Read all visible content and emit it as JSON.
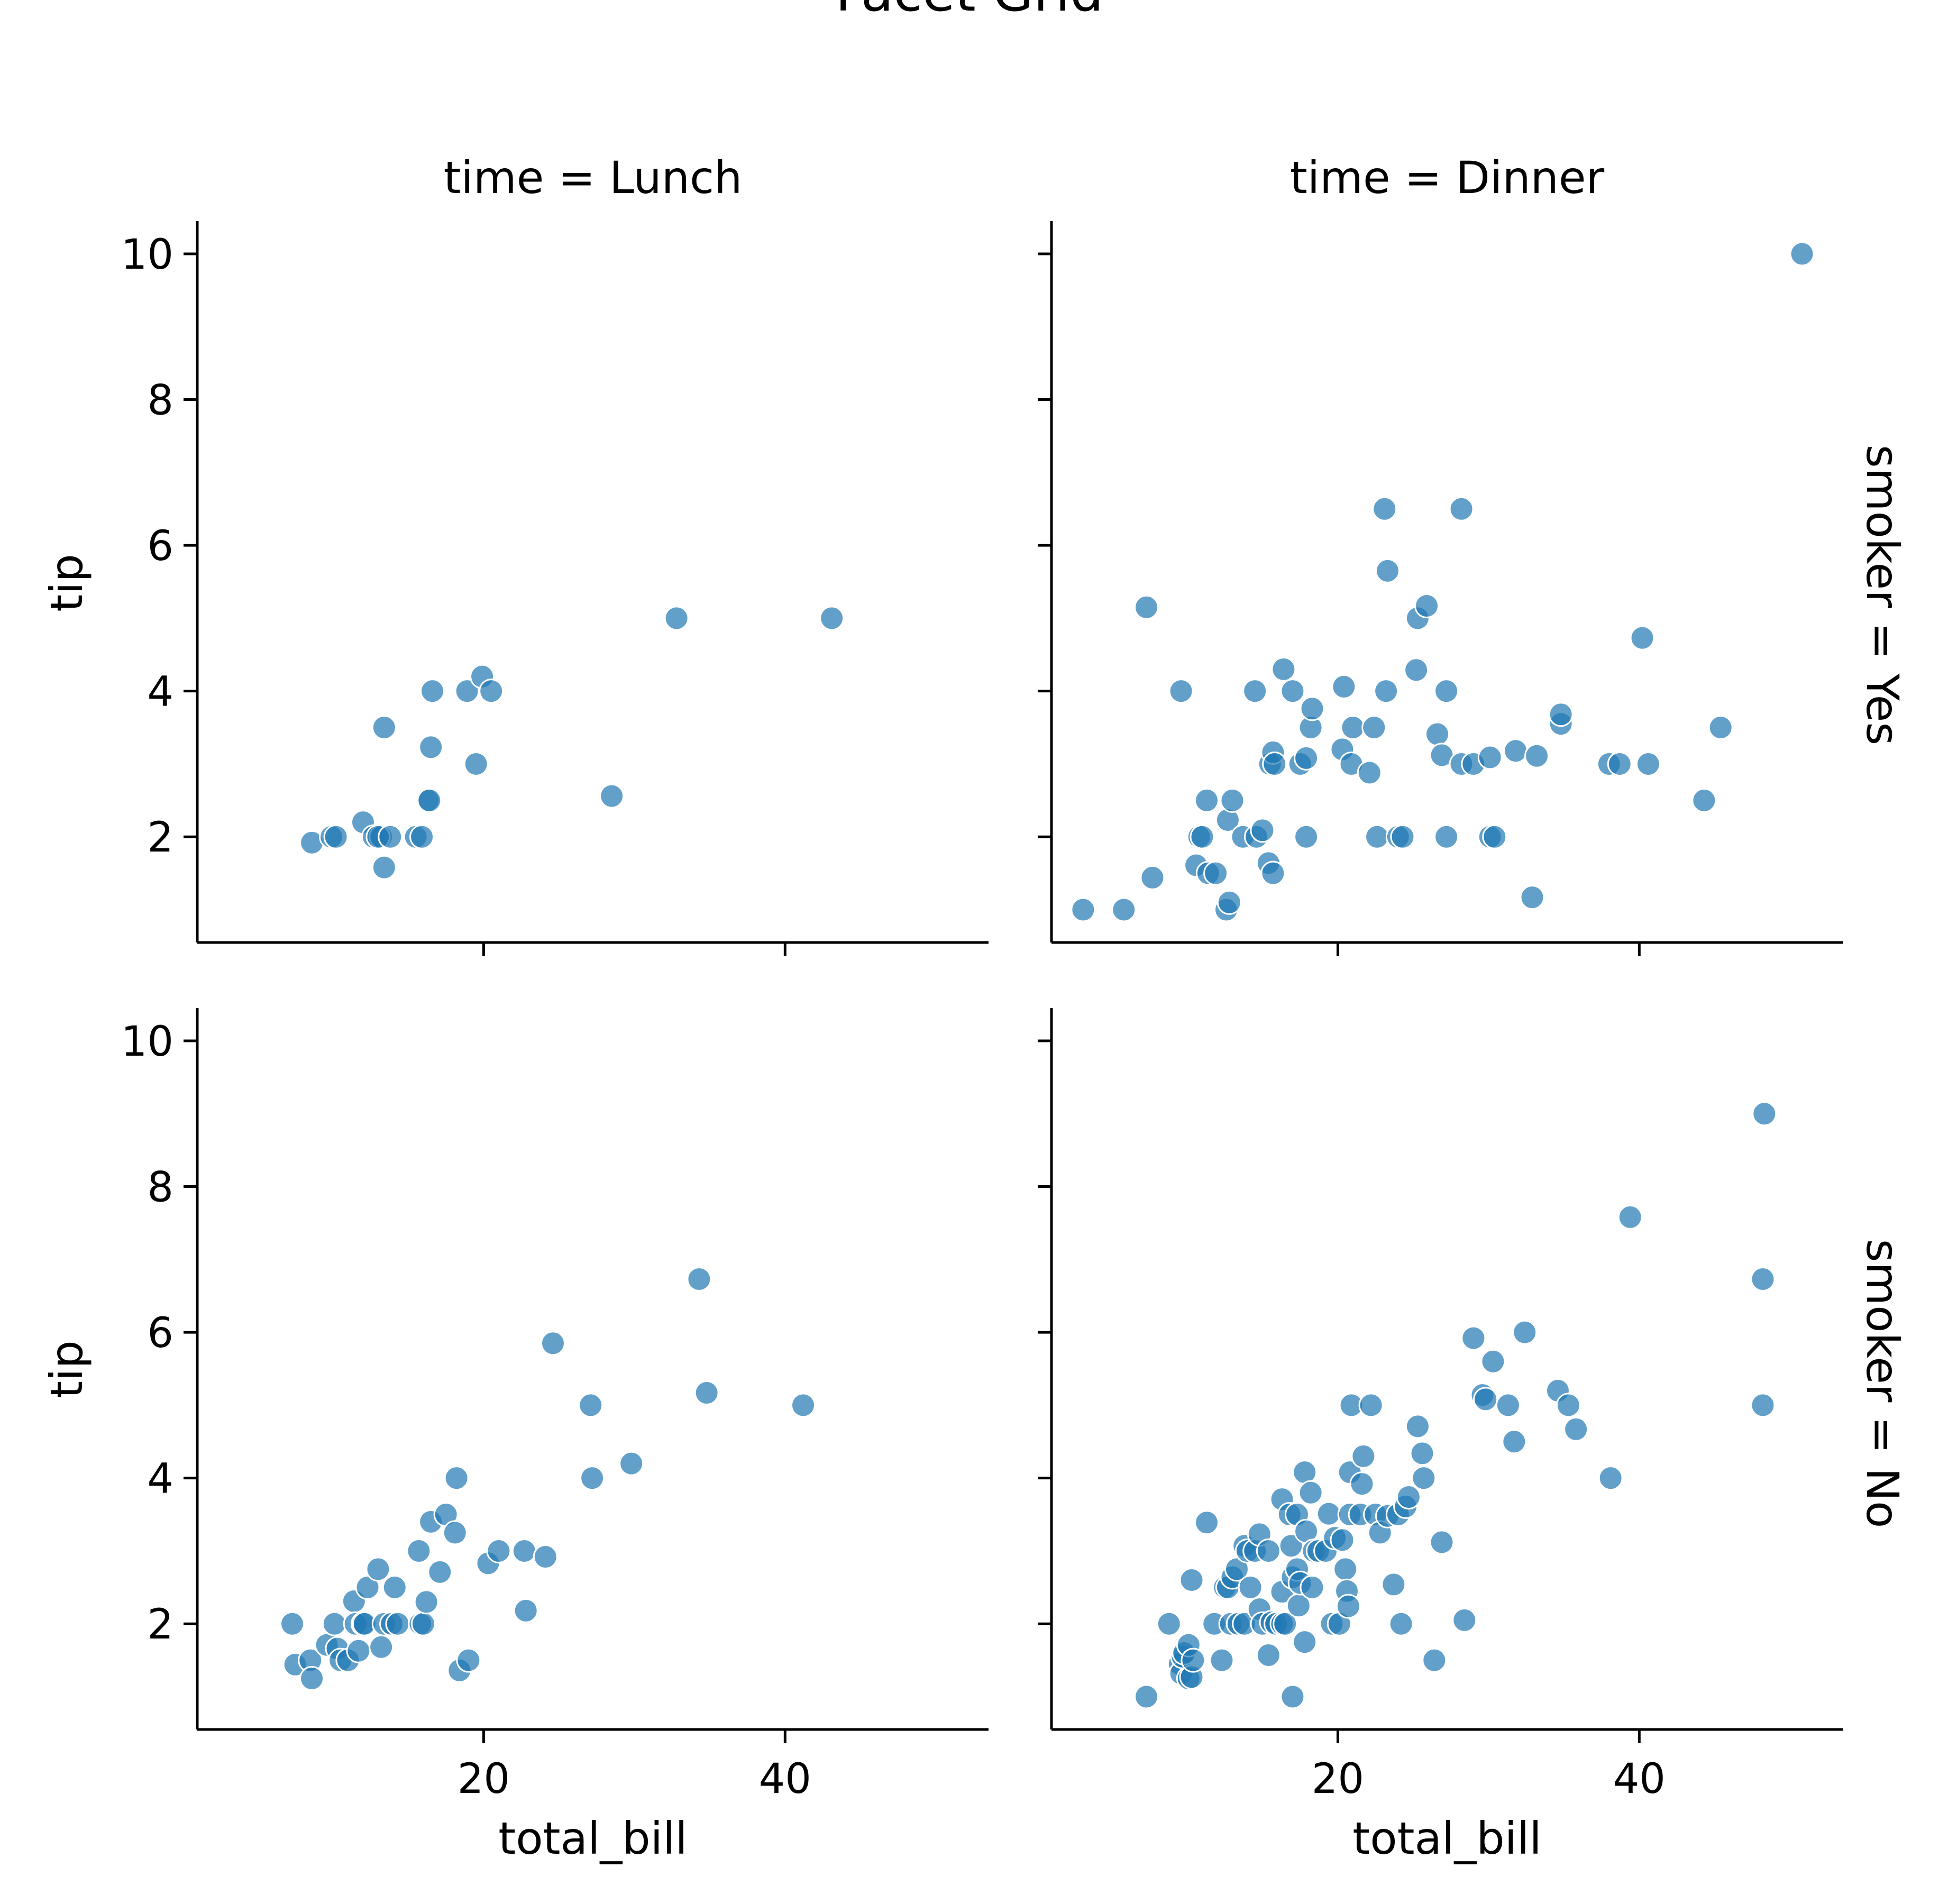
{
  "chart_data": {
    "type": "scatter",
    "suptitle": "Facet Grid",
    "xlabel": "total_bill",
    "ylabel": "tip",
    "xlim": [
      1,
      53.5
    ],
    "ylim": [
      0.55,
      10.45
    ],
    "xticks": [
      20,
      40
    ],
    "yticks": [
      2,
      4,
      6,
      8,
      10
    ],
    "xtick_labels": [
      "20",
      "40"
    ],
    "ytick_labels": [
      "2",
      "4",
      "6",
      "8",
      "10"
    ],
    "point_color": "#1f77b4",
    "legend": "none",
    "grid": false,
    "facets": [
      {
        "col_title": "time = Lunch",
        "row_title": "",
        "points": [
          [
            8.6,
            1.92
          ],
          [
            9.9,
            2.0
          ],
          [
            10.2,
            2.0
          ],
          [
            12.0,
            2.2
          ],
          [
            12.7,
            2.0
          ],
          [
            13.2,
            2.0
          ],
          [
            13.0,
            2.0
          ],
          [
            13.4,
            3.5
          ],
          [
            13.4,
            1.58
          ],
          [
            13.8,
            2.0
          ],
          [
            15.5,
            2.0
          ],
          [
            15.9,
            2.0
          ],
          [
            16.3,
            2.5
          ],
          [
            16.4,
            2.5
          ],
          [
            16.5,
            3.23
          ],
          [
            16.6,
            4.0
          ],
          [
            18.9,
            4.0
          ],
          [
            19.5,
            3.0
          ],
          [
            19.9,
            4.2
          ],
          [
            20.5,
            4.0
          ],
          [
            28.5,
            2.56
          ],
          [
            32.8,
            5.0
          ],
          [
            43.1,
            5.0
          ]
        ]
      },
      {
        "col_title": "time = Dinner",
        "row_title": "smoker = Yes",
        "points": [
          [
            3.1,
            1.0
          ],
          [
            5.8,
            1.0
          ],
          [
            7.3,
            5.15
          ],
          [
            7.7,
            1.44
          ],
          [
            9.6,
            4.0
          ],
          [
            10.6,
            1.61
          ],
          [
            10.8,
            2.0
          ],
          [
            11.0,
            2.0
          ],
          [
            11.3,
            2.5
          ],
          [
            11.4,
            1.5
          ],
          [
            11.9,
            1.5
          ],
          [
            12.6,
            1.0
          ],
          [
            12.7,
            2.23
          ],
          [
            12.8,
            1.1
          ],
          [
            13.0,
            2.5
          ],
          [
            13.7,
            2.0
          ],
          [
            14.5,
            4.0
          ],
          [
            14.6,
            2.0
          ],
          [
            15.0,
            2.09
          ],
          [
            15.4,
            1.64
          ],
          [
            15.5,
            3.0
          ],
          [
            15.7,
            3.16
          ],
          [
            15.7,
            1.5
          ],
          [
            15.8,
            3.0
          ],
          [
            16.4,
            4.3
          ],
          [
            17.0,
            4.0
          ],
          [
            17.5,
            3.0
          ],
          [
            17.9,
            3.08
          ],
          [
            17.9,
            2.0
          ],
          [
            18.2,
            3.5
          ],
          [
            18.3,
            3.76
          ],
          [
            20.3,
            3.2
          ],
          [
            20.4,
            4.06
          ],
          [
            20.9,
            3.0
          ],
          [
            21.0,
            3.5
          ],
          [
            22.1,
            2.88
          ],
          [
            22.4,
            3.5
          ],
          [
            22.6,
            2.0
          ],
          [
            23.1,
            6.5
          ],
          [
            23.3,
            5.65
          ],
          [
            23.2,
            4.0
          ],
          [
            24.0,
            2.0
          ],
          [
            24.3,
            2.0
          ],
          [
            25.2,
            4.29
          ],
          [
            25.3,
            5.0
          ],
          [
            25.9,
            5.17
          ],
          [
            26.6,
            3.41
          ],
          [
            26.9,
            3.12
          ],
          [
            27.2,
            4.0
          ],
          [
            27.2,
            2.0
          ],
          [
            28.2,
            6.5
          ],
          [
            28.2,
            3.0
          ],
          [
            29.0,
            3.0
          ],
          [
            30.1,
            3.09
          ],
          [
            30.1,
            2.0
          ],
          [
            30.4,
            2.0
          ],
          [
            31.8,
            3.18
          ],
          [
            32.9,
            1.17
          ],
          [
            33.2,
            3.11
          ],
          [
            34.8,
            3.55
          ],
          [
            34.8,
            3.68
          ],
          [
            38.0,
            3.0
          ],
          [
            38.7,
            3.0
          ],
          [
            40.2,
            4.73
          ],
          [
            40.6,
            3.0
          ],
          [
            44.3,
            2.5
          ],
          [
            45.4,
            3.5
          ],
          [
            50.8,
            10.0
          ]
        ]
      },
      {
        "col_title": "",
        "row_title": "",
        "points": [
          [
            7.3,
            2.0
          ],
          [
            7.5,
            1.44
          ],
          [
            8.5,
            1.5
          ],
          [
            8.6,
            1.25
          ],
          [
            9.6,
            1.71
          ],
          [
            10.1,
            2.0
          ],
          [
            10.3,
            1.66
          ],
          [
            10.5,
            1.5
          ],
          [
            11.0,
            1.5
          ],
          [
            11.4,
            2.31
          ],
          [
            11.5,
            2.0
          ],
          [
            11.7,
            1.63
          ],
          [
            12.0,
            2.0
          ],
          [
            12.1,
            2.0
          ],
          [
            12.3,
            2.5
          ],
          [
            13.0,
            2.75
          ],
          [
            13.2,
            1.68
          ],
          [
            13.4,
            2.0
          ],
          [
            13.9,
            2.0
          ],
          [
            14.1,
            2.5
          ],
          [
            14.3,
            2.0
          ],
          [
            15.7,
            3.0
          ],
          [
            15.8,
            2.0
          ],
          [
            16.0,
            2.0
          ],
          [
            16.2,
            2.3
          ],
          [
            16.5,
            3.4
          ],
          [
            17.1,
            2.71
          ],
          [
            17.5,
            3.5
          ],
          [
            18.1,
            3.25
          ],
          [
            18.2,
            4.0
          ],
          [
            18.4,
            1.36
          ],
          [
            19.0,
            1.5
          ],
          [
            20.3,
            2.83
          ],
          [
            21.0,
            3.0
          ],
          [
            22.7,
            3.0
          ],
          [
            22.8,
            2.18
          ],
          [
            24.1,
            2.92
          ],
          [
            24.6,
            5.85
          ],
          [
            27.1,
            5.0
          ],
          [
            27.2,
            4.0
          ],
          [
            29.8,
            4.2
          ],
          [
            34.3,
            6.73
          ],
          [
            34.8,
            5.17
          ],
          [
            41.2,
            5.0
          ]
        ]
      },
      {
        "col_title": "",
        "row_title": "smoker = No",
        "points": [
          [
            7.3,
            1.0
          ],
          [
            8.8,
            2.0
          ],
          [
            9.5,
            1.45
          ],
          [
            9.6,
            1.32
          ],
          [
            9.7,
            1.55
          ],
          [
            9.8,
            1.6
          ],
          [
            10.1,
            1.71
          ],
          [
            10.1,
            1.25
          ],
          [
            10.3,
            1.27
          ],
          [
            10.4,
            1.5
          ],
          [
            10.3,
            2.6
          ],
          [
            11.3,
            3.39
          ],
          [
            11.8,
            2.0
          ],
          [
            12.3,
            1.5
          ],
          [
            12.5,
            2.5
          ],
          [
            12.7,
            2.5
          ],
          [
            12.9,
            2.0
          ],
          [
            13.0,
            2.64
          ],
          [
            13.3,
            2.75
          ],
          [
            13.4,
            2.0
          ],
          [
            13.8,
            2.0
          ],
          [
            13.8,
            3.07
          ],
          [
            14.0,
            3.0
          ],
          [
            14.2,
            2.5
          ],
          [
            14.5,
            3.0
          ],
          [
            14.8,
            3.23
          ],
          [
            14.8,
            2.2
          ],
          [
            15.0,
            2.0
          ],
          [
            15.4,
            3.0
          ],
          [
            15.4,
            1.57
          ],
          [
            15.6,
            2.02
          ],
          [
            15.9,
            2.0
          ],
          [
            16.3,
            2.0
          ],
          [
            16.3,
            3.71
          ],
          [
            16.3,
            2.44
          ],
          [
            16.5,
            2.0
          ],
          [
            16.8,
            3.5
          ],
          [
            16.9,
            3.07
          ],
          [
            17.0,
            1.0
          ],
          [
            17.0,
            2.64
          ],
          [
            17.3,
            3.5
          ],
          [
            17.3,
            2.75
          ],
          [
            17.4,
            2.25
          ],
          [
            17.5,
            2.56
          ],
          [
            17.8,
            4.08
          ],
          [
            17.8,
            1.75
          ],
          [
            17.9,
            3.27
          ],
          [
            18.2,
            3.8
          ],
          [
            18.3,
            2.5
          ],
          [
            18.4,
            3.0
          ],
          [
            18.7,
            3.0
          ],
          [
            19.2,
            3.0
          ],
          [
            19.4,
            3.51
          ],
          [
            19.6,
            2.0
          ],
          [
            19.8,
            3.18
          ],
          [
            20.1,
            2.0
          ],
          [
            20.3,
            3.15
          ],
          [
            20.5,
            2.75
          ],
          [
            20.6,
            2.45
          ],
          [
            20.7,
            2.24
          ],
          [
            20.8,
            3.5
          ],
          [
            20.8,
            4.08
          ],
          [
            20.9,
            5.0
          ],
          [
            21.5,
            3.5
          ],
          [
            21.6,
            3.92
          ],
          [
            21.7,
            4.3
          ],
          [
            22.2,
            5.0
          ],
          [
            22.5,
            3.5
          ],
          [
            22.8,
            3.25
          ],
          [
            23.3,
            3.48
          ],
          [
            23.7,
            2.54
          ],
          [
            24.0,
            3.5
          ],
          [
            24.2,
            2.0
          ],
          [
            24.5,
            3.61
          ],
          [
            24.7,
            3.74
          ],
          [
            25.3,
            4.71
          ],
          [
            25.6,
            4.34
          ],
          [
            25.7,
            4.0
          ],
          [
            26.4,
            1.5
          ],
          [
            26.9,
            3.12
          ],
          [
            28.4,
            2.05
          ],
          [
            29.0,
            5.92
          ],
          [
            29.6,
            5.14
          ],
          [
            29.8,
            5.08
          ],
          [
            30.3,
            5.6
          ],
          [
            31.3,
            5.0
          ],
          [
            31.7,
            4.5
          ],
          [
            32.4,
            6.0
          ],
          [
            34.6,
            5.2
          ],
          [
            35.3,
            5.0
          ],
          [
            35.8,
            4.67
          ],
          [
            38.1,
            4.0
          ],
          [
            39.4,
            7.58
          ],
          [
            48.2,
            6.73
          ],
          [
            48.2,
            5.0
          ],
          [
            48.3,
            9.0
          ]
        ]
      }
    ]
  }
}
